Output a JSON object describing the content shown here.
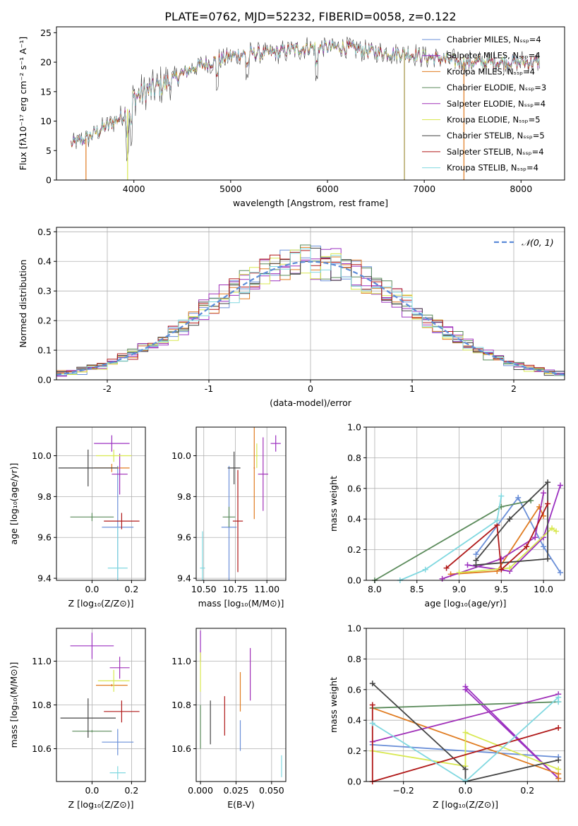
{
  "figure": {
    "title": "PLATE=0762, MJD=52232, FIBERID=0058, z=0.122"
  },
  "chart_data": [
    {
      "id": "spectrum",
      "type": "line",
      "xlabel": "wavelength [Angstrom, rest frame]",
      "ylabel": "Flux [fλ10⁻¹⁷ erg cm⁻² s⁻¹ A⁻¹]",
      "xlim": [
        3200,
        8450
      ],
      "ylim": [
        0,
        26
      ],
      "xticks": [
        4000,
        5000,
        6000,
        7000,
        8000
      ],
      "yticks": [
        0,
        5,
        10,
        15,
        20,
        25
      ],
      "grid": false,
      "legend_position": "top-right",
      "continuum": {
        "x": [
          3350,
          3500,
          3700,
          3900,
          4000,
          4200,
          4400,
          4600,
          4800,
          5000,
          5200,
          5400,
          5600,
          5800,
          6000,
          6200,
          6400,
          6600,
          6800,
          7000,
          7200,
          7400,
          7600,
          7800,
          8000,
          8200
        ],
        "y": [
          6.0,
          7.0,
          9.0,
          11.0,
          14.0,
          15.5,
          17.0,
          19.0,
          20.0,
          21.0,
          21.5,
          21.5,
          22.0,
          22.5,
          22.5,
          22.5,
          22.0,
          21.5,
          21.5,
          21.0,
          20.5,
          20.0,
          20.0,
          20.0,
          20.0,
          20.0
        ]
      },
      "series": [
        {
          "name": "Chabrier MILES, N_SSP=4",
          "color": "#6a8fd8"
        },
        {
          "name": "Salpeter MILES, N_SSP=4",
          "color": "#9b30c0"
        },
        {
          "name": "Kroupa MILES, N_SSP=4",
          "color": "#e07b20"
        },
        {
          "name": "Chabrier ELODIE, N_SSP=3",
          "color": "#5a8a5a"
        },
        {
          "name": "Salpeter ELODIE, N_SSP=4",
          "color": "#a030b8"
        },
        {
          "name": "Kroupa ELODIE, N_SSP=5",
          "color": "#d8e850"
        },
        {
          "name": "Chabrier STELIB, N_SSP=5",
          "color": "#444444"
        },
        {
          "name": "Salpeter STELIB, N_SSP=4",
          "color": "#b01818"
        },
        {
          "name": "Kroupa STELIB, N_SSP=4",
          "color": "#80d8e0"
        }
      ]
    },
    {
      "id": "residuals",
      "type": "line",
      "xlabel": "(data-model)/error",
      "ylabel": "Normed distribution",
      "xlim": [
        -2.5,
        2.5
      ],
      "ylim": [
        0,
        0.515
      ],
      "xticks": [
        -2,
        -1,
        0,
        1,
        2
      ],
      "yticks": [
        0.0,
        0.1,
        0.2,
        0.3,
        0.4,
        0.5
      ],
      "grid": true,
      "legend_position": "top-right",
      "legend": "𝒩(0, 1)",
      "reference_curve": {
        "name": "N(0,1)",
        "mean": 0,
        "sigma": 1,
        "color": "#5b8bd8"
      },
      "histogram_bin_width": 0.1
    },
    {
      "id": "age-vs-Z",
      "type": "scatter",
      "xlabel": "Z [log₁₀(Z/Z⊙)]",
      "ylabel": "age  [log₁₀(age/yr)]",
      "xlim": [
        -0.18,
        0.27
      ],
      "ylim": [
        9.39,
        10.14
      ],
      "xticks": [
        0.0,
        0.2
      ],
      "yticks": [
        9.4,
        9.6,
        9.8,
        10.0
      ],
      "grid": true,
      "points": [
        {
          "series": "Chabrier MILES",
          "x": 0.13,
          "y": 9.65,
          "xerr": 0.08,
          "yerr": 0.3
        },
        {
          "series": "Salpeter MILES",
          "x": 0.1,
          "y": 10.06,
          "xerr": 0.09,
          "yerr": 0.04
        },
        {
          "series": "Kroupa MILES",
          "x": 0.1,
          "y": 9.94,
          "xerr": 0.09,
          "yerr": 0.02
        },
        {
          "series": "Chabrier ELODIE",
          "x": 0.0,
          "y": 9.7,
          "xerr": 0.11,
          "yerr": 0.02
        },
        {
          "series": "Salpeter ELODIE",
          "x": 0.14,
          "y": 9.91,
          "xerr": 0.04,
          "yerr": 0.1
        },
        {
          "series": "Kroupa ELODIE",
          "x": 0.11,
          "y": 10.0,
          "xerr": 0.09,
          "yerr": 0.03
        },
        {
          "series": "Chabrier STELIB",
          "x": -0.02,
          "y": 9.94,
          "xerr": 0.15,
          "yerr": 0.09
        },
        {
          "series": "Salpeter STELIB",
          "x": 0.15,
          "y": 9.68,
          "xerr": 0.09,
          "yerr": 0.04
        },
        {
          "series": "Kroupa STELIB",
          "x": 0.13,
          "y": 9.45,
          "xerr": 0.05,
          "yerr": 0.2
        }
      ]
    },
    {
      "id": "age-vs-mass",
      "type": "scatter",
      "xlabel": "mass [log₁₀(M/M⊙)]",
      "ylabel": "",
      "xlim": [
        10.44,
        11.15
      ],
      "ylim": [
        9.39,
        10.14
      ],
      "xticks": [
        10.5,
        10.75,
        11.0
      ],
      "yticks": [
        9.4,
        9.6,
        9.8,
        10.0
      ],
      "grid": true,
      "points": [
        {
          "series": "Chabrier MILES",
          "x": 10.7,
          "y": 9.65,
          "xerr": 0.06,
          "yerr": 0.3
        },
        {
          "series": "Salpeter MILES",
          "x": 11.07,
          "y": 10.06,
          "xerr": 0.04,
          "yerr": 0.04
        },
        {
          "series": "Kroupa MILES",
          "x": 10.9,
          "y": 9.94,
          "xerr": 0.005,
          "yerr": 0.25
        },
        {
          "series": "Chabrier ELODIE",
          "x": 10.7,
          "y": 9.7,
          "xerr": 0.05,
          "yerr": 0.05
        },
        {
          "series": "Salpeter ELODIE",
          "x": 10.97,
          "y": 9.91,
          "xerr": 0.04,
          "yerr": 0.18
        },
        {
          "series": "Kroupa ELODIE",
          "x": 10.92,
          "y": 10.0,
          "xerr": 0.01,
          "yerr": 0.06
        },
        {
          "series": "Chabrier STELIB",
          "x": 10.74,
          "y": 9.94,
          "xerr": 0.05,
          "yerr": 0.08
        },
        {
          "series": "Salpeter STELIB",
          "x": 10.77,
          "y": 9.68,
          "xerr": 0.04,
          "yerr": 0.25
        },
        {
          "series": "Kroupa STELIB",
          "x": 10.49,
          "y": 9.45,
          "xerr": 0.02,
          "yerr": 0.18
        }
      ]
    },
    {
      "id": "mass-weight-vs-age",
      "type": "line",
      "xlabel": "age  [log₁₀(age/yr)]",
      "ylabel": "mass weight",
      "xlim": [
        7.9,
        10.25
      ],
      "ylim": [
        0,
        1
      ],
      "xticks": [
        8.0,
        8.5,
        9.0,
        9.5,
        10.0
      ],
      "yticks": [
        0.0,
        0.2,
        0.4,
        0.6,
        0.8,
        1.0
      ],
      "grid": true,
      "series": [
        {
          "name": "Chabrier MILES",
          "x": [
            9.2,
            9.7,
            10.0,
            10.2
          ],
          "y": [
            0.17,
            0.54,
            0.22,
            0.05
          ]
        },
        {
          "name": "Salpeter MILES",
          "x": [
            9.1,
            9.6,
            10.0,
            10.2
          ],
          "y": [
            0.1,
            0.06,
            0.28,
            0.62
          ]
        },
        {
          "name": "Kroupa MILES",
          "x": [
            8.9,
            9.45,
            9.95,
            10.0
          ],
          "y": [
            0.04,
            0.06,
            0.48,
            0.42
          ]
        },
        {
          "name": "Chabrier ELODIE",
          "x": [
            8.0,
            9.5,
            9.85
          ],
          "y": [
            0.0,
            0.48,
            0.52
          ]
        },
        {
          "name": "Salpeter ELODIE",
          "x": [
            8.8,
            9.5,
            9.9,
            10.0
          ],
          "y": [
            0.01,
            0.14,
            0.28,
            0.57
          ]
        },
        {
          "name": "Kroupa ELODIE",
          "x": [
            9.0,
            9.6,
            10.1,
            10.15
          ],
          "y": [
            0.05,
            0.08,
            0.34,
            0.32
          ]
        },
        {
          "name": "Chabrier STELIB",
          "x": [
            9.2,
            9.6,
            10.05,
            10.05,
            9.2
          ],
          "y": [
            0.13,
            0.4,
            0.64,
            0.14,
            0.1
          ]
        },
        {
          "name": "Salpeter STELIB",
          "x": [
            8.85,
            9.45,
            9.5,
            9.8,
            10.05
          ],
          "y": [
            0.08,
            0.36,
            0.07,
            0.22,
            0.5
          ]
        },
        {
          "name": "Kroupa STELIB",
          "x": [
            8.3,
            8.6,
            9.45,
            9.5
          ],
          "y": [
            0.0,
            0.07,
            0.39,
            0.55
          ]
        }
      ]
    },
    {
      "id": "mass-vs-Z",
      "type": "scatter",
      "xlabel": "Z [log₁₀(Z/Z⊙)]",
      "ylabel": "mass [log₁₀(M/M⊙)]",
      "xlim": [
        -0.18,
        0.27
      ],
      "ylim": [
        10.45,
        11.15
      ],
      "xticks": [
        0.0,
        0.2
      ],
      "yticks": [
        10.6,
        10.8,
        11.0
      ],
      "grid": true,
      "points": [
        {
          "series": "Chabrier MILES",
          "x": 0.13,
          "y": 10.63,
          "xerr": 0.08,
          "yerr": 0.06
        },
        {
          "series": "Salpeter MILES",
          "x": 0.0,
          "y": 11.07,
          "xerr": 0.11,
          "yerr": 0.06
        },
        {
          "series": "Kroupa MILES",
          "x": 0.1,
          "y": 10.89,
          "xerr": 0.08,
          "yerr": 0.005
        },
        {
          "series": "Chabrier ELODIE",
          "x": 0.0,
          "y": 10.68,
          "xerr": 0.1,
          "yerr": 0.005
        },
        {
          "series": "Salpeter ELODIE",
          "x": 0.14,
          "y": 10.97,
          "xerr": 0.05,
          "yerr": 0.05
        },
        {
          "series": "Kroupa ELODIE",
          "x": 0.11,
          "y": 10.91,
          "xerr": 0.08,
          "yerr": 0.05
        },
        {
          "series": "Chabrier STELIB",
          "x": -0.02,
          "y": 10.74,
          "xerr": 0.14,
          "yerr": 0.09
        },
        {
          "series": "Salpeter STELIB",
          "x": 0.15,
          "y": 10.77,
          "xerr": 0.09,
          "yerr": 0.05
        },
        {
          "series": "Kroupa STELIB",
          "x": 0.13,
          "y": 10.49,
          "xerr": 0.04,
          "yerr": 0.03
        }
      ]
    },
    {
      "id": "mass-vs-EBV",
      "type": "scatter",
      "xlabel": "E(B-V)",
      "ylabel": "",
      "xlim": [
        -0.003,
        0.06
      ],
      "ylim": [
        10.45,
        11.15
      ],
      "xticks": [
        0.0,
        0.025,
        0.05
      ],
      "xtick_labels": [
        "0.000",
        "0.025",
        "0.050"
      ],
      "yticks": [
        10.6,
        10.8,
        11.0
      ],
      "grid": true,
      "points": [
        {
          "series": "Chabrier MILES",
          "x": 0.028,
          "y": 10.66,
          "yerr": 0.07
        },
        {
          "series": "Salpeter MILES",
          "x": 0.0,
          "y": 11.07,
          "yerr": 0.07
        },
        {
          "series": "Kroupa MILES",
          "x": 0.028,
          "y": 10.86,
          "yerr": 0.09
        },
        {
          "series": "Chabrier ELODIE",
          "x": 0.0,
          "y": 10.7,
          "yerr": 0.1
        },
        {
          "series": "Salpeter ELODIE",
          "x": 0.035,
          "y": 10.94,
          "yerr": 0.12
        },
        {
          "series": "Kroupa ELODIE",
          "x": 0.0,
          "y": 10.95,
          "yerr": 0.09
        },
        {
          "series": "Chabrier STELIB",
          "x": 0.007,
          "y": 10.72,
          "yerr": 0.1
        },
        {
          "series": "Salpeter STELIB",
          "x": 0.017,
          "y": 10.75,
          "yerr": 0.09
        },
        {
          "series": "Kroupa STELIB",
          "x": 0.057,
          "y": 10.52,
          "yerr": 0.05
        }
      ]
    },
    {
      "id": "mass-weight-vs-Z",
      "type": "line",
      "xlabel": "Z [log₁₀(Z/Z⊙)]",
      "ylabel": "mass weight",
      "xlim": [
        -0.32,
        0.32
      ],
      "ylim": [
        0,
        1
      ],
      "xticks": [
        -0.2,
        0.0,
        0.2
      ],
      "yticks": [
        0.0,
        0.2,
        0.4,
        0.6,
        0.8,
        1.0
      ],
      "grid": true,
      "series": [
        {
          "name": "Chabrier MILES",
          "x": [
            -0.3,
            0.3
          ],
          "y": [
            0.24,
            0.16
          ]
        },
        {
          "name": "Salpeter MILES",
          "x": [
            0.0,
            0.3,
            0.0
          ],
          "y": [
            0.62,
            0.02,
            0.6
          ]
        },
        {
          "name": "Kroupa MILES",
          "x": [
            -0.3,
            0.3,
            0.3
          ],
          "y": [
            0.48,
            0.05,
            0.02
          ]
        },
        {
          "name": "Chabrier ELODIE",
          "x": [
            -0.3,
            0.3
          ],
          "y": [
            0.48,
            0.52
          ]
        },
        {
          "name": "Salpeter ELODIE",
          "x": [
            -0.3,
            0.3
          ],
          "y": [
            0.26,
            0.57
          ]
        },
        {
          "name": "Kroupa ELODIE",
          "x": [
            -0.3,
            0.0,
            0.0,
            0.3
          ],
          "y": [
            0.2,
            0.1,
            0.32,
            0.08
          ]
        },
        {
          "name": "Chabrier STELIB",
          "x": [
            -0.3,
            0.0,
            0.0,
            0.3
          ],
          "y": [
            0.64,
            0.08,
            0.0,
            0.14
          ]
        },
        {
          "name": "Salpeter STELIB",
          "x": [
            -0.3,
            -0.3,
            0.3
          ],
          "y": [
            0.5,
            0.0,
            0.35
          ]
        },
        {
          "name": "Kroupa STELIB",
          "x": [
            -0.3,
            0.0,
            0.3,
            0.3
          ],
          "y": [
            0.38,
            0.0,
            0.55,
            0.52
          ]
        }
      ]
    }
  ]
}
